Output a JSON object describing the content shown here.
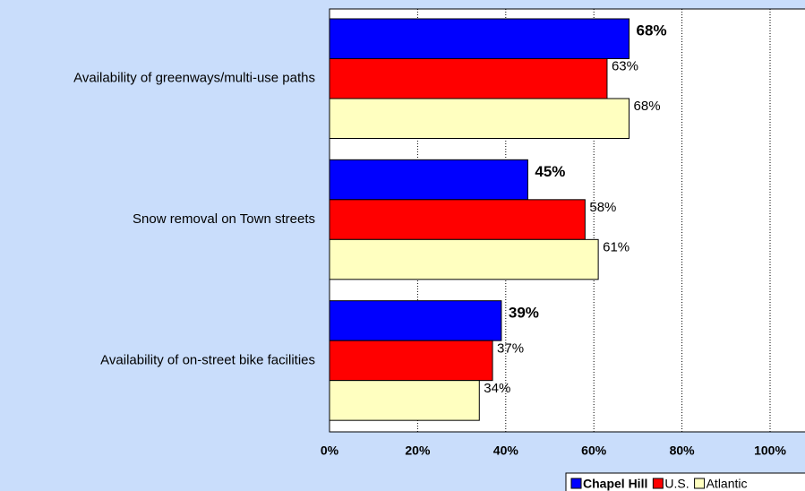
{
  "chart_data": {
    "type": "hbar",
    "categories": [
      "Availability of greenways/multi-use paths",
      "Snow removal on Town streets",
      "Availability of on-street bike facilities"
    ],
    "series": [
      {
        "name": "Chapel Hill",
        "color": "#0000ff",
        "values": [
          68,
          45,
          39
        ],
        "value_labels": [
          "68%",
          "45%",
          "39%"
        ]
      },
      {
        "name": "U.S.",
        "color": "#ff0000",
        "values": [
          63,
          58,
          37
        ],
        "value_labels": [
          "63%",
          "58%",
          "37%"
        ]
      },
      {
        "name": "Atlantic",
        "color": "#ffffc0",
        "values": [
          68,
          61,
          34
        ],
        "value_labels": [
          "68%",
          "61%",
          "34%"
        ]
      }
    ],
    "xlim": [
      0,
      100
    ],
    "xticks": [
      {
        "value": 0,
        "label": "0%"
      },
      {
        "value": 20,
        "label": "20%"
      },
      {
        "value": 40,
        "label": "40%"
      },
      {
        "value": 60,
        "label": "60%"
      },
      {
        "value": 80,
        "label": "80%"
      },
      {
        "value": 100,
        "label": "100%"
      }
    ],
    "grid": true,
    "legend": "bottom-right"
  }
}
